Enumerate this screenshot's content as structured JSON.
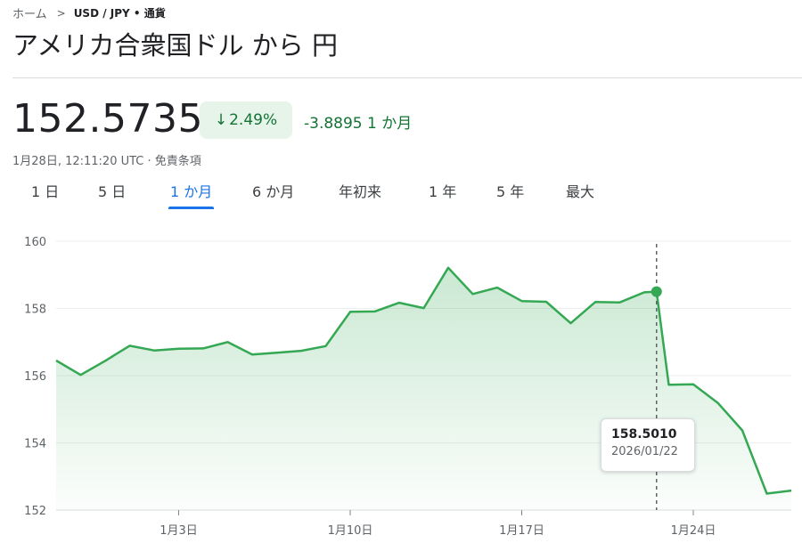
{
  "breadcrumb": {
    "home": "ホーム",
    "pair": "USD / JPY • 通貨"
  },
  "title": "アメリカ合衆国ドル から 円",
  "quote": {
    "price": "152.5735",
    "change_percent": "2.49%",
    "change_direction": "down",
    "change_abs": "-3.8895",
    "change_period": "1 か月",
    "timestamp": "1月28日, 12:11:20 UTC",
    "disclaimer": "免責条項"
  },
  "tabs": [
    {
      "label": "1 日",
      "active": false
    },
    {
      "label": "5 日",
      "active": false
    },
    {
      "label": "1 か月",
      "active": true
    },
    {
      "label": "6 か月",
      "active": false
    },
    {
      "label": "年初来",
      "active": false
    },
    {
      "label": "1 年",
      "active": false
    },
    {
      "label": "5 年",
      "active": false
    },
    {
      "label": "最大",
      "active": false
    }
  ],
  "colors": {
    "line": "#34a853",
    "positive_text": "#137333",
    "badge_bg": "#e6f4ea",
    "accent": "#1a73e8"
  },
  "tooltip": {
    "value": "158.5010",
    "date": "2026/01/22"
  },
  "chart_data": {
    "type": "area",
    "title": "",
    "xlabel": "",
    "ylabel": "",
    "ylim": [
      152,
      160
    ],
    "yticks": [
      "152",
      "154",
      "156",
      "158",
      "160"
    ],
    "xticks": [
      "1月3日",
      "1月10日",
      "1月17日",
      "1月24日"
    ],
    "xtick_values": [
      "2026-01-03",
      "2026-01-10",
      "2026-01-17",
      "2026-01-24"
    ],
    "xlim": [
      "2025-12-29",
      "2026-01-28"
    ],
    "grid": true,
    "highlight": {
      "x": "2026-01-22",
      "y": 158.501
    },
    "series": [
      {
        "values": [
          [
            "2025-12-29",
            156.45
          ],
          [
            "2025-12-30",
            156.02
          ],
          [
            "2025-12-31",
            156.44
          ],
          [
            "2026-01-01",
            156.89
          ],
          [
            "2026-01-02",
            156.75
          ],
          [
            "2026-01-03",
            156.8
          ],
          [
            "2026-01-04",
            156.81
          ],
          [
            "2026-01-05",
            157.0
          ],
          [
            "2026-01-06",
            156.63
          ],
          [
            "2026-01-07",
            156.68
          ],
          [
            "2026-01-08",
            156.74
          ],
          [
            "2026-01-09",
            156.88
          ],
          [
            "2026-01-10",
            157.9
          ],
          [
            "2026-01-11",
            157.91
          ],
          [
            "2026-01-12",
            158.17
          ],
          [
            "2026-01-13",
            158.01
          ],
          [
            "2026-01-14",
            159.21
          ],
          [
            "2026-01-15",
            158.43
          ],
          [
            "2026-01-16",
            158.62
          ],
          [
            "2026-01-17",
            158.22
          ],
          [
            "2026-01-18",
            158.2
          ],
          [
            "2026-01-19",
            157.56
          ],
          [
            "2026-01-20",
            158.19
          ],
          [
            "2026-01-21",
            158.18
          ],
          [
            "2026-01-22",
            158.48
          ],
          [
            "2026-01-22T12:00",
            158.5
          ],
          [
            "2026-01-23",
            155.73
          ],
          [
            "2026-01-24",
            155.74
          ],
          [
            "2026-01-25",
            155.19
          ],
          [
            "2026-01-26",
            154.37
          ],
          [
            "2026-01-27",
            152.49
          ],
          [
            "2026-01-28",
            152.58
          ]
        ]
      }
    ]
  }
}
